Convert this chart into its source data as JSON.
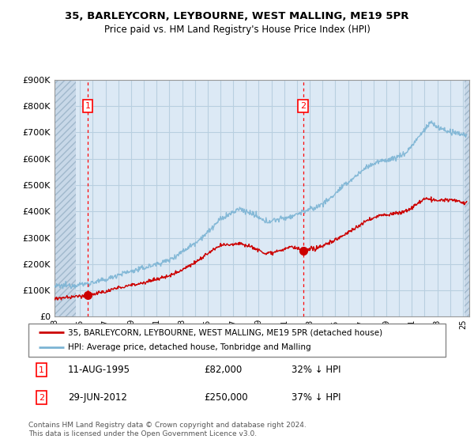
{
  "title": "35, BARLEYCORN, LEYBOURNE, WEST MALLING, ME19 5PR",
  "subtitle": "Price paid vs. HM Land Registry's House Price Index (HPI)",
  "ylim": [
    0,
    900000
  ],
  "yticks": [
    0,
    100000,
    200000,
    300000,
    400000,
    500000,
    600000,
    700000,
    800000,
    900000
  ],
  "ytick_labels": [
    "£0",
    "£100K",
    "£200K",
    "£300K",
    "£400K",
    "£500K",
    "£600K",
    "£700K",
    "£800K",
    "£900K"
  ],
  "xmin": 1993.0,
  "xmax": 2025.5,
  "hpi_color": "#7cb4d4",
  "price_color": "#cc0000",
  "chart_bg": "#dce9f5",
  "hatch_bg": "#c8d8e8",
  "grid_color": "#b8cfe0",
  "transaction1": {
    "date": "11-AUG-1995",
    "price": 82000,
    "pct": "32% ↓ HPI",
    "x": 1995.61
  },
  "transaction2": {
    "date": "29-JUN-2012",
    "price": 250000,
    "pct": "37% ↓ HPI",
    "x": 2012.49
  },
  "legend_line1": "35, BARLEYCORN, LEYBOURNE, WEST MALLING, ME19 5PR (detached house)",
  "legend_line2": "HPI: Average price, detached house, Tonbridge and Malling",
  "footnote": "Contains HM Land Registry data © Crown copyright and database right 2024.\nThis data is licensed under the Open Government Licence v3.0."
}
